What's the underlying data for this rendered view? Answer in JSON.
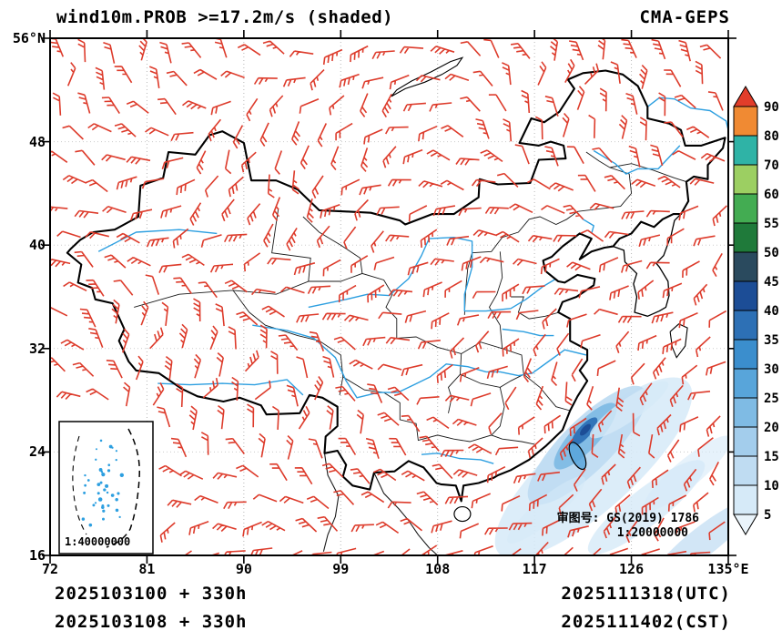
{
  "header": {
    "title": "wind10m.PROB >=17.2m/s (shaded)",
    "model": "CMA-GEPS"
  },
  "footer": {
    "left_line1": "2025103100 + 330h",
    "left_line2": "2025103108 + 330h",
    "right_line1": "2025111318(UTC)",
    "right_line2": "2025111402(CST)"
  },
  "map_annotations": {
    "review_no": "审图号: GS(2019) 1786",
    "scale_main": "1:20000000",
    "inset_scale": "1:40000000"
  },
  "axes": {
    "lon_range": [
      72,
      135
    ],
    "lat_range": [
      16,
      56
    ],
    "y_ticks": [
      {
        "label": "56°N",
        "lat": 56
      },
      {
        "label": "48",
        "lat": 48
      },
      {
        "label": "40",
        "lat": 40
      },
      {
        "label": "32",
        "lat": 32
      },
      {
        "label": "24",
        "lat": 24
      },
      {
        "label": "16",
        "lat": 16
      }
    ],
    "x_ticks": [
      {
        "label": "72",
        "lon": 72
      },
      {
        "label": "81",
        "lon": 81
      },
      {
        "label": "90",
        "lon": 90
      },
      {
        "label": "99",
        "lon": 99
      },
      {
        "label": "108",
        "lon": 108
      },
      {
        "label": "117",
        "lon": 117
      },
      {
        "label": "126",
        "lon": 126
      },
      {
        "label": "135°E",
        "lon": 135
      }
    ]
  },
  "chart_data": {
    "type": "map",
    "subtype": "ensemble-probability-with-wind-barbs",
    "title": "wind10m.PROB >=17.2m/s (shaded)",
    "model": "CMA-GEPS",
    "shaded_variable": "Probability of 10m wind speed >= 17.2 m/s (shaded, %)",
    "domain": {
      "lon_min": 72,
      "lon_max": 135,
      "lat_min": 16,
      "lat_max": 56
    },
    "init_cycles": [
      "2025103100",
      "2025103108"
    ],
    "lead_time": "330h",
    "valid_time_utc": "2025111318(UTC)",
    "valid_time_cst": "2025111402(CST)",
    "colorbar": {
      "orientation": "vertical-right",
      "extend": "both",
      "levels": [
        5,
        10,
        15,
        20,
        25,
        30,
        35,
        40,
        45,
        50,
        55,
        60,
        70,
        80,
        90
      ],
      "labels_top_to_bottom": [
        "90",
        "80",
        "70",
        "60",
        "55",
        "50",
        "45",
        "40",
        "35",
        "30",
        "25",
        "20",
        "15",
        "10",
        "5"
      ],
      "colors_low_to_high": [
        "#eaf4fb",
        "#d6eaf8",
        "#bfdcf2",
        "#a3cdec",
        "#7fbbe4",
        "#58a5da",
        "#3b8ecd",
        "#2d70b5",
        "#1c4d96",
        "#2a4a5e",
        "#1f7a3a",
        "#43ac52",
        "#9ccf62",
        "#2fb3a6",
        "#f08a33",
        "#e23d2a"
      ]
    },
    "wind_barbs": {
      "color": "#dd3b2b",
      "coverage": "full domain",
      "note": "red wind barbs over whole map; individual directions not resolvable at this scale, rendered as a procedurally generated field"
    },
    "shaded_maxima": [
      {
        "region": "Taiwan Strait / seas near and east of Taiwan (approx 118-127E, 17-28N)",
        "peak_percent": 40
      },
      {
        "region": "diagonal low-probability streaks toward bottom-right corner of domain",
        "peak_percent": 10
      }
    ],
    "map_layers": [
      "national boundaries (black, thick)",
      "province boundaries (black, thin)",
      "rivers (blue)",
      "South China Sea inset box (bottom-left)",
      "dotted lon/lat gridlines"
    ]
  }
}
